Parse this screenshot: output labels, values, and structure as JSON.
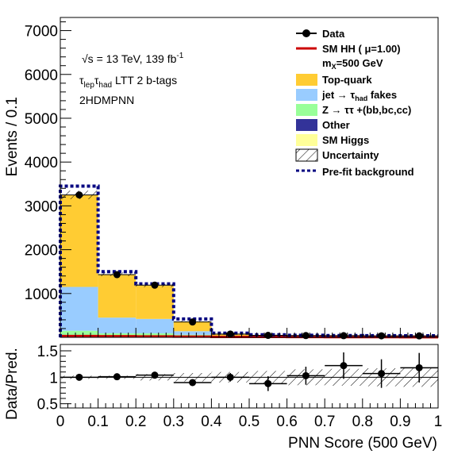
{
  "chart_data": [
    {
      "type": "bar",
      "subtype": "stacked-histogram",
      "ylabel": "Events / 0.1",
      "ylim": [
        0,
        7300
      ],
      "yticks": [
        1000,
        2000,
        3000,
        4000,
        5000,
        6000,
        7000
      ],
      "xlim": [
        0,
        1
      ],
      "bin_edges": [
        0,
        0.1,
        0.2,
        0.3,
        0.4,
        0.5,
        0.6,
        0.7,
        0.8,
        0.9,
        1.0
      ],
      "annotations": {
        "energy": "√s = 13 TeV, 139 fb",
        "energy_sup": "-1",
        "channel_tau1": "τ",
        "channel_sub1": "lep",
        "channel_tau2": "τ",
        "channel_sub2": "had",
        "channel_rest": " LTT 2 b-tags",
        "model": "2HDMPNN"
      },
      "stack": [
        {
          "name": "Z → ττ +(bb,bc,cc)",
          "color": "#99ff99",
          "values": [
            150,
            90,
            90,
            60,
            20,
            15,
            12,
            10,
            10,
            8
          ]
        },
        {
          "name": "jet → τhad fakes",
          "color": "#99ccff",
          "values": [
            1000,
            360,
            330,
            80,
            15,
            10,
            8,
            6,
            5,
            5
          ]
        },
        {
          "name": "Top-quark",
          "color": "#ffcc33",
          "values": [
            2100,
            990,
            760,
            220,
            40,
            25,
            18,
            14,
            12,
            10
          ]
        }
      ],
      "signal": {
        "name": "SM HH",
        "color": "#cc0000",
        "values": [
          30,
          25,
          20,
          15,
          10,
          8,
          6,
          5,
          4,
          3
        ]
      },
      "prefit": {
        "name": "Pre-fit background",
        "color": "#000080",
        "values": [
          3450,
          1500,
          1220,
          420,
          95,
          60,
          48,
          40,
          38,
          36
        ]
      },
      "data": {
        "name": "Data",
        "x": [
          0.05,
          0.15,
          0.25,
          0.35,
          0.45,
          0.55,
          0.65,
          0.75,
          0.85,
          0.95
        ],
        "values": [
          3250,
          1430,
          1190,
          350,
          75,
          45,
          40,
          38,
          35,
          33
        ]
      },
      "legend": {
        "placement": "top-right",
        "data": "Data",
        "sm_hh": "SM HH ( μ=1.00)",
        "mass_pre": "m",
        "mass_sub": "X",
        "mass_post": "=500 GeV",
        "top": "Top-quark",
        "fakes_pre": "jet  →  τ",
        "fakes_sub": "had",
        "fakes_post": " fakes",
        "ztt": "Z  →  ττ +(bb,bc,cc)",
        "other": "Other",
        "smhiggs": "SM Higgs",
        "unc": "Uncertainty",
        "prefit": "Pre-fit background"
      },
      "colors": {
        "other": "#333399",
        "smhiggs": "#ffff99"
      }
    },
    {
      "type": "scatter",
      "subtype": "ratio",
      "ylabel": "Data/Pred.",
      "xlabel": "PNN Score (500 GeV)",
      "ylim": [
        0.42,
        1.62
      ],
      "yticks": [
        "0.5",
        "1",
        "1.5"
      ],
      "ytick_values": [
        0.5,
        1.0,
        1.5
      ],
      "xlim": [
        0,
        1
      ],
      "xticks": [
        "0",
        "0.1",
        "0.2",
        "0.3",
        "0.4",
        "0.5",
        "0.6",
        "0.7",
        "0.8",
        "0.9",
        "1"
      ],
      "x": [
        0.05,
        0.15,
        0.25,
        0.35,
        0.45,
        0.55,
        0.65,
        0.75,
        0.85,
        0.95
      ],
      "values": [
        1.0,
        1.01,
        1.04,
        0.9,
        1.0,
        0.88,
        1.03,
        1.22,
        1.07,
        1.18
      ],
      "errors": [
        0.02,
        0.025,
        0.03,
        0.04,
        0.08,
        0.14,
        0.17,
        0.25,
        0.27,
        0.28
      ],
      "uncertainty_band": [
        0.03,
        0.03,
        0.06,
        0.08,
        0.1,
        0.12,
        0.15,
        0.16,
        0.17,
        0.18
      ]
    }
  ]
}
